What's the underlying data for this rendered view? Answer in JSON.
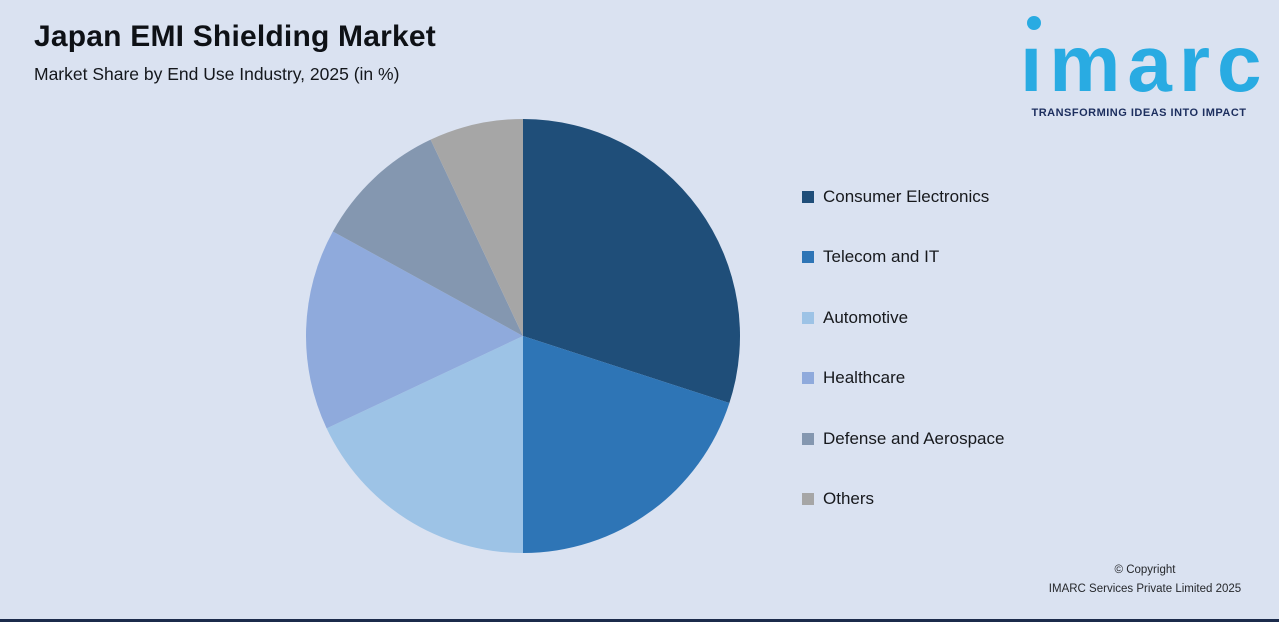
{
  "page": {
    "background_color": "#DAE2F1",
    "bottom_bar_color": "#1B2B4B"
  },
  "header": {
    "title": "Japan EMI Shielding Market",
    "subtitle": "Market Share by End Use Industry, 2025 (in %)"
  },
  "logo": {
    "wordmark": "imarc",
    "tagline": "TRANSFORMING IDEAS INTO IMPACT",
    "brand_color": "#29ABE2",
    "tagline_color": "#1C2E5E"
  },
  "chart_data": {
    "type": "pie",
    "title": "Japan EMI Shielding Market",
    "subtitle": "Market Share by End Use Industry, 2025 (in %)",
    "unit": "percent",
    "start_angle_deg": 0,
    "direction": "clockwise",
    "legend_position": "right",
    "data_labels_visible": false,
    "categories": [
      "Consumer Electronics",
      "Telecom and IT",
      "Automotive",
      "Healthcare",
      "Defense and Aerospace",
      "Others"
    ],
    "values": [
      30,
      20,
      18,
      15,
      10,
      7
    ],
    "colors": [
      "#1F4E79",
      "#2E75B6",
      "#9DC3E6",
      "#8FAADC",
      "#8497B0",
      "#A6A6A6"
    ]
  },
  "legend": {
    "items": [
      {
        "label": "Consumer Electronics",
        "color": "#1F4E79"
      },
      {
        "label": "Telecom and IT",
        "color": "#2E75B6"
      },
      {
        "label": "Automotive",
        "color": "#9DC3E6"
      },
      {
        "label": "Healthcare",
        "color": "#8FAADC"
      },
      {
        "label": "Defense and Aerospace",
        "color": "#8497B0"
      },
      {
        "label": "Others",
        "color": "#A6A6A6"
      }
    ]
  },
  "footer": {
    "line1": "© Copyright",
    "line2": "IMARC Services Private Limited 2025"
  }
}
